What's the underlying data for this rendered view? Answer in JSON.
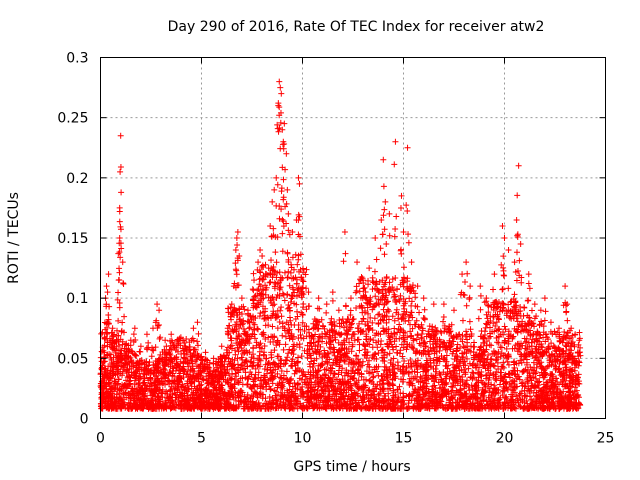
{
  "chart_data": {
    "type": "scatter",
    "title": "Day 290 of 2016, Rate Of TEC Index for receiver atw2",
    "xlabel": "GPS time / hours",
    "ylabel": "ROTI / TECUs",
    "xlim": [
      0,
      25
    ],
    "ylim": [
      0,
      0.3
    ],
    "xticks": [
      0,
      5,
      10,
      15,
      20,
      25
    ],
    "yticks": [
      0,
      0.05,
      0.1,
      0.15,
      0.2,
      0.25,
      0.3
    ],
    "xtick_labels": [
      "0",
      "5",
      "10",
      "15",
      "20",
      "25"
    ],
    "ytick_labels": [
      "0",
      "0.05",
      "0.1",
      "0.15",
      "0.2",
      "0.25",
      "0.3"
    ],
    "grid": true,
    "marker": "+",
    "color": "#ff0000",
    "series": [
      {
        "name": "ROTI",
        "points": [
          [
            0.05,
            0.02
          ],
          [
            0.1,
            0.035
          ],
          [
            0.2,
            0.055
          ],
          [
            0.25,
            0.1
          ],
          [
            0.3,
            0.11
          ],
          [
            0.35,
            0.105
          ],
          [
            0.4,
            0.12
          ],
          [
            0.5,
            0.04
          ],
          [
            0.6,
            0.075
          ],
          [
            0.8,
            0.06
          ],
          [
            0.9,
            0.115
          ],
          [
            0.95,
            0.15
          ],
          [
            0.95,
            0.175
          ],
          [
            0.97,
            0.205
          ],
          [
            1.0,
            0.235
          ],
          [
            1.1,
            0.13
          ],
          [
            1.3,
            0.05
          ],
          [
            1.5,
            0.065
          ],
          [
            1.7,
            0.075
          ],
          [
            2.0,
            0.06
          ],
          [
            2.3,
            0.07
          ],
          [
            2.6,
            0.075
          ],
          [
            2.8,
            0.095
          ],
          [
            2.9,
            0.09
          ],
          [
            3.2,
            0.065
          ],
          [
            3.5,
            0.07
          ],
          [
            3.8,
            0.065
          ],
          [
            4.2,
            0.06
          ],
          [
            4.5,
            0.065
          ],
          [
            4.6,
            0.075
          ],
          [
            4.8,
            0.08
          ],
          [
            5.2,
            0.055
          ],
          [
            5.6,
            0.05
          ],
          [
            6.0,
            0.06
          ],
          [
            6.3,
            0.075
          ],
          [
            6.5,
            0.095
          ],
          [
            6.6,
            0.11
          ],
          [
            6.7,
            0.14
          ],
          [
            6.75,
            0.15
          ],
          [
            6.8,
            0.155
          ],
          [
            7.0,
            0.1
          ],
          [
            7.3,
            0.09
          ],
          [
            7.6,
            0.115
          ],
          [
            7.8,
            0.13
          ],
          [
            7.9,
            0.14
          ],
          [
            8.0,
            0.135
          ],
          [
            8.2,
            0.12
          ],
          [
            8.4,
            0.16
          ],
          [
            8.5,
            0.18
          ],
          [
            8.6,
            0.19
          ],
          [
            8.7,
            0.2
          ],
          [
            8.8,
            0.26
          ],
          [
            8.85,
            0.28
          ],
          [
            8.9,
            0.275
          ],
          [
            8.95,
            0.27
          ],
          [
            9.0,
            0.24
          ],
          [
            9.05,
            0.23
          ],
          [
            9.1,
            0.245
          ],
          [
            9.2,
            0.22
          ],
          [
            9.25,
            0.19
          ],
          [
            9.3,
            0.17
          ],
          [
            9.5,
            0.155
          ],
          [
            9.7,
            0.165
          ],
          [
            9.8,
            0.2
          ],
          [
            9.85,
            0.195
          ],
          [
            10.0,
            0.115
          ],
          [
            10.3,
            0.105
          ],
          [
            10.8,
            0.1
          ],
          [
            11.2,
            0.095
          ],
          [
            11.5,
            0.105
          ],
          [
            11.8,
            0.09
          ],
          [
            12.1,
            0.155
          ],
          [
            12.4,
            0.1
          ],
          [
            12.7,
            0.13
          ],
          [
            13.0,
            0.115
          ],
          [
            13.3,
            0.125
          ],
          [
            13.6,
            0.15
          ],
          [
            13.9,
            0.165
          ],
          [
            14.0,
            0.215
          ],
          [
            14.1,
            0.18
          ],
          [
            14.3,
            0.17
          ],
          [
            14.6,
            0.23
          ],
          [
            14.9,
            0.185
          ],
          [
            15.0,
            0.155
          ],
          [
            15.2,
            0.225
          ],
          [
            15.4,
            0.13
          ],
          [
            15.7,
            0.11
          ],
          [
            16.0,
            0.1
          ],
          [
            16.5,
            0.095
          ],
          [
            17.0,
            0.095
          ],
          [
            17.5,
            0.09
          ],
          [
            17.9,
            0.12
          ],
          [
            18.1,
            0.13
          ],
          [
            18.3,
            0.11
          ],
          [
            18.8,
            0.11
          ],
          [
            19.1,
            0.1
          ],
          [
            19.5,
            0.12
          ],
          [
            19.9,
            0.16
          ],
          [
            20.0,
            0.15
          ],
          [
            20.2,
            0.14
          ],
          [
            20.5,
            0.13
          ],
          [
            20.6,
            0.165
          ],
          [
            20.7,
            0.21
          ],
          [
            20.8,
            0.145
          ],
          [
            21.2,
            0.12
          ],
          [
            21.5,
            0.095
          ],
          [
            21.8,
            0.09
          ],
          [
            22.0,
            0.1
          ],
          [
            22.3,
            0.08
          ],
          [
            22.7,
            0.075
          ],
          [
            23.0,
            0.11
          ],
          [
            23.1,
            0.095
          ],
          [
            23.3,
            0.075
          ],
          [
            23.5,
            0.07
          ],
          [
            23.7,
            0.065
          ]
        ],
        "background_density_note_value": 0.03
      }
    ]
  }
}
